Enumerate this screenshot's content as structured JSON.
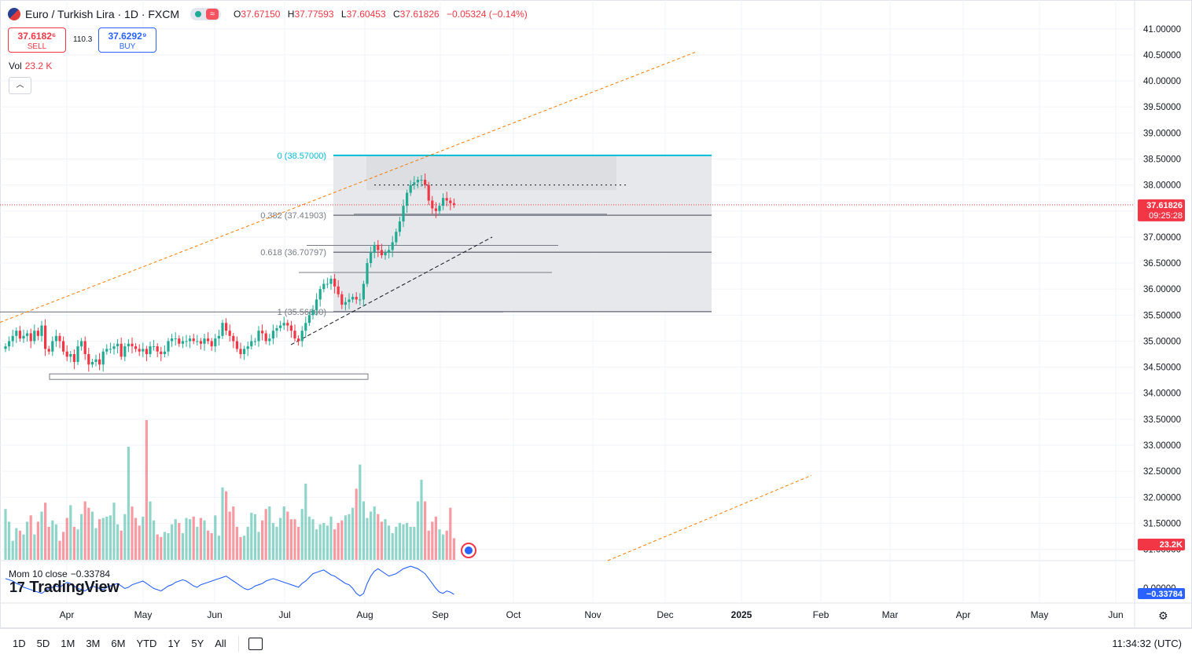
{
  "header": {
    "title": "Euro / Turkish Lira · 1D · FXCM",
    "open_label": "O",
    "open": "37.67150",
    "high_label": "H",
    "high": "37.77593",
    "low_label": "L",
    "low": "37.60453",
    "close_label": "C",
    "close": "37.61826",
    "change": "−0.05324 (−0.14%)"
  },
  "trade": {
    "sell_price": "37.6182⁶",
    "sell_label": "SELL",
    "spread": "110.3",
    "buy_price": "37.6292⁹",
    "buy_label": "BUY"
  },
  "volume_legend": {
    "label": "Vol",
    "value": "23.2 K"
  },
  "momentum_legend": {
    "label": "Mom 10 close",
    "value": "−0.33784"
  },
  "watermark": "TradingView",
  "bottom_bar": {
    "timeframes": [
      "1D",
      "5D",
      "1M",
      "3M",
      "6M",
      "YTD",
      "1Y",
      "5Y",
      "All"
    ],
    "clock": "11:34:32 (UTC)"
  },
  "colors": {
    "up": "#22ab94",
    "down": "#f23645",
    "fib": "#00bcd4",
    "trend": "#f57c00",
    "mom": "#2962ff"
  },
  "icons": [
    "currency-flag-icon",
    "market-status-dot-icon",
    "wave-icon",
    "collapse-chevron-icon",
    "date-range-calendar-icon",
    "settings-gear-icon"
  ],
  "chart_data": {
    "type": "candlestick",
    "symbol": "Euro / Turkish Lira",
    "interval": "1D",
    "exchange": "FXCM",
    "ylim": [
      30.85,
      41.2
    ],
    "y_ticks": [
      "41.00000",
      "40.50000",
      "40.00000",
      "39.50000",
      "39.00000",
      "38.50000",
      "38.00000",
      "37.50000",
      "37.00000",
      "36.50000",
      "36.00000",
      "35.50000",
      "35.00000",
      "34.50000",
      "34.00000",
      "33.50000",
      "33.00000",
      "32.50000",
      "32.00000",
      "31.50000",
      "31.00000"
    ],
    "x_ticks": [
      "Apr",
      "May",
      "Jun",
      "Jul",
      "Aug",
      "Sep",
      "Oct",
      "Nov",
      "Dec",
      "2025",
      "Feb",
      "Mar",
      "Apr",
      "May",
      "Jun"
    ],
    "last_price": {
      "value": "37.61826",
      "countdown": "09:25:28"
    },
    "volume_last_label": "23.2K",
    "mom_last_label": "−0.33784",
    "mom_zero_label": "0.00000",
    "fibonacci": [
      {
        "level": "0",
        "price": "38.57000"
      },
      {
        "level": "0.382",
        "price": "37.41903"
      },
      {
        "level": "0.618",
        "price": "36.70797"
      },
      {
        "level": "1",
        "price": "35.56600"
      }
    ],
    "candles_close": [
      34.9,
      35.0,
      35.1,
      35.2,
      35.05,
      35.1,
      35.15,
      35.0,
      35.2,
      35.1,
      35.3,
      34.85,
      34.8,
      35.0,
      35.1,
      35.0,
      34.8,
      34.7,
      34.75,
      34.6,
      34.9,
      35.0,
      34.75,
      34.55,
      34.6,
      34.65,
      34.55,
      34.8,
      34.85,
      34.85,
      34.9,
      34.95,
      34.7,
      34.9,
      34.95,
      34.9,
      34.85,
      34.8,
      34.85,
      34.75,
      34.9,
      34.9,
      34.8,
      34.75,
      34.8,
      35.0,
      35.05,
      35.05,
      34.95,
      35.0,
      35.0,
      35.05,
      35.0,
      35.0,
      34.95,
      35.05,
      35.0,
      34.9,
      35.05,
      35.1,
      35.35,
      35.2,
      35.1,
      35.0,
      34.85,
      34.75,
      34.85,
      34.9,
      35.0,
      35.0,
      35.2,
      35.15,
      35.0,
      35.05,
      35.2,
      35.25,
      35.3,
      35.35,
      35.3,
      35.2,
      35.05,
      35.0,
      35.2,
      35.35,
      35.5,
      35.6,
      35.8,
      36.0,
      36.1,
      36.1,
      36.2,
      36.05,
      35.9,
      35.7,
      35.75,
      35.8,
      35.85,
      35.8,
      35.8,
      36.1,
      36.5,
      36.7,
      36.85,
      36.75,
      36.65,
      36.7,
      36.75,
      36.9,
      37.1,
      37.3,
      37.6,
      37.85,
      38.0,
      38.05,
      38.1,
      38.1,
      38.0,
      37.7,
      37.55,
      37.5,
      37.6,
      37.75,
      37.7,
      37.65,
      37.62
    ],
    "volume_values": [
      4,
      3,
      1.5,
      2.5,
      2.3,
      2,
      3,
      3.5,
      2,
      3,
      3.8,
      4.5,
      2.6,
      3.1,
      2.8,
      1.5,
      2.2,
      3.3,
      4.3,
      2.6,
      2.4,
      3.6,
      4.6,
      4.1,
      3.8,
      2.5,
      3.2,
      3.3,
      3.4,
      3.5,
      4.5,
      2.8,
      2.3,
      3.6,
      8.9,
      4.2,
      3.3,
      2.7,
      3.4,
      11.0,
      4.6,
      3.1,
      2.0,
      1.8,
      2.2,
      2.1,
      2.8,
      3.2,
      2.9,
      2.1,
      3.3,
      3.2,
      3.4,
      2.6,
      3.3,
      3.1,
      2.3,
      2.1,
      3.5,
      1.9,
      5.7,
      5.4,
      3.8,
      4.2,
      2.6,
      1.8,
      1.9,
      2.6,
      3.7,
      3.6,
      2.2,
      3.1,
      4.0,
      4.2,
      2.9,
      2.6,
      3.3,
      4.2,
      3.8,
      3.2,
      3.2,
      2.6,
      4.0,
      6.0,
      3.4,
      3.2,
      2.4,
      2.8,
      2.9,
      2.7,
      3.4,
      2.4,
      2.9,
      3.1,
      3.5,
      3.6,
      4.1,
      5.6,
      7.5,
      4.6,
      3.3,
      3.8,
      4.2,
      3.6,
      3.0,
      3.2,
      2.7,
      2.1,
      2.6,
      2.9,
      2.8,
      2.9,
      2.6,
      2.6,
      4.6,
      6.3,
      4.6,
      2.3,
      3.0,
      3.4,
      2.4,
      2.0,
      2.3,
      4.1,
      1.7
    ],
    "momentum_values": [
      0.3,
      0.25,
      0.2,
      0.1,
      0.05,
      -0.05,
      -0.1,
      -0.15,
      -0.2,
      -0.25,
      -0.3,
      -0.2,
      -0.1,
      -0.05,
      0.0,
      -0.05,
      0.05,
      0.15,
      0.1,
      0.0,
      -0.1,
      -0.15,
      -0.2,
      -0.1,
      0.0,
      -0.05,
      -0.1,
      -0.15,
      -0.05,
      0.0,
      0.05,
      0.1,
      0.0,
      -0.1,
      -0.05,
      0.05,
      0.1,
      0.15,
      0.2,
      0.1,
      0.0,
      -0.1,
      -0.15,
      -0.2,
      -0.1,
      0.0,
      0.05,
      0.15,
      0.2,
      0.25,
      0.2,
      0.1,
      0.0,
      -0.05,
      0.05,
      0.1,
      0.15,
      0.2,
      0.25,
      0.3,
      0.35,
      0.4,
      0.3,
      0.2,
      0.1,
      0.0,
      -0.1,
      -0.15,
      -0.1,
      0.0,
      0.05,
      0.1,
      0.2,
      0.25,
      0.3,
      0.25,
      0.2,
      0.15,
      0.1,
      0.05,
      0.0,
      -0.05,
      0.1,
      0.2,
      0.35,
      0.5,
      0.55,
      0.6,
      0.65,
      0.55,
      0.45,
      0.4,
      0.3,
      0.2,
      0.1,
      0.05,
      -0.1,
      -0.3,
      -0.4,
      -0.3,
      0.1,
      0.4,
      0.6,
      0.7,
      0.6,
      0.5,
      0.4,
      0.45,
      0.5,
      0.6,
      0.7,
      0.75,
      0.8,
      0.75,
      0.7,
      0.6,
      0.5,
      0.3,
      0.1,
      -0.1,
      -0.25,
      -0.3,
      -0.2,
      -0.25,
      -0.34
    ]
  }
}
